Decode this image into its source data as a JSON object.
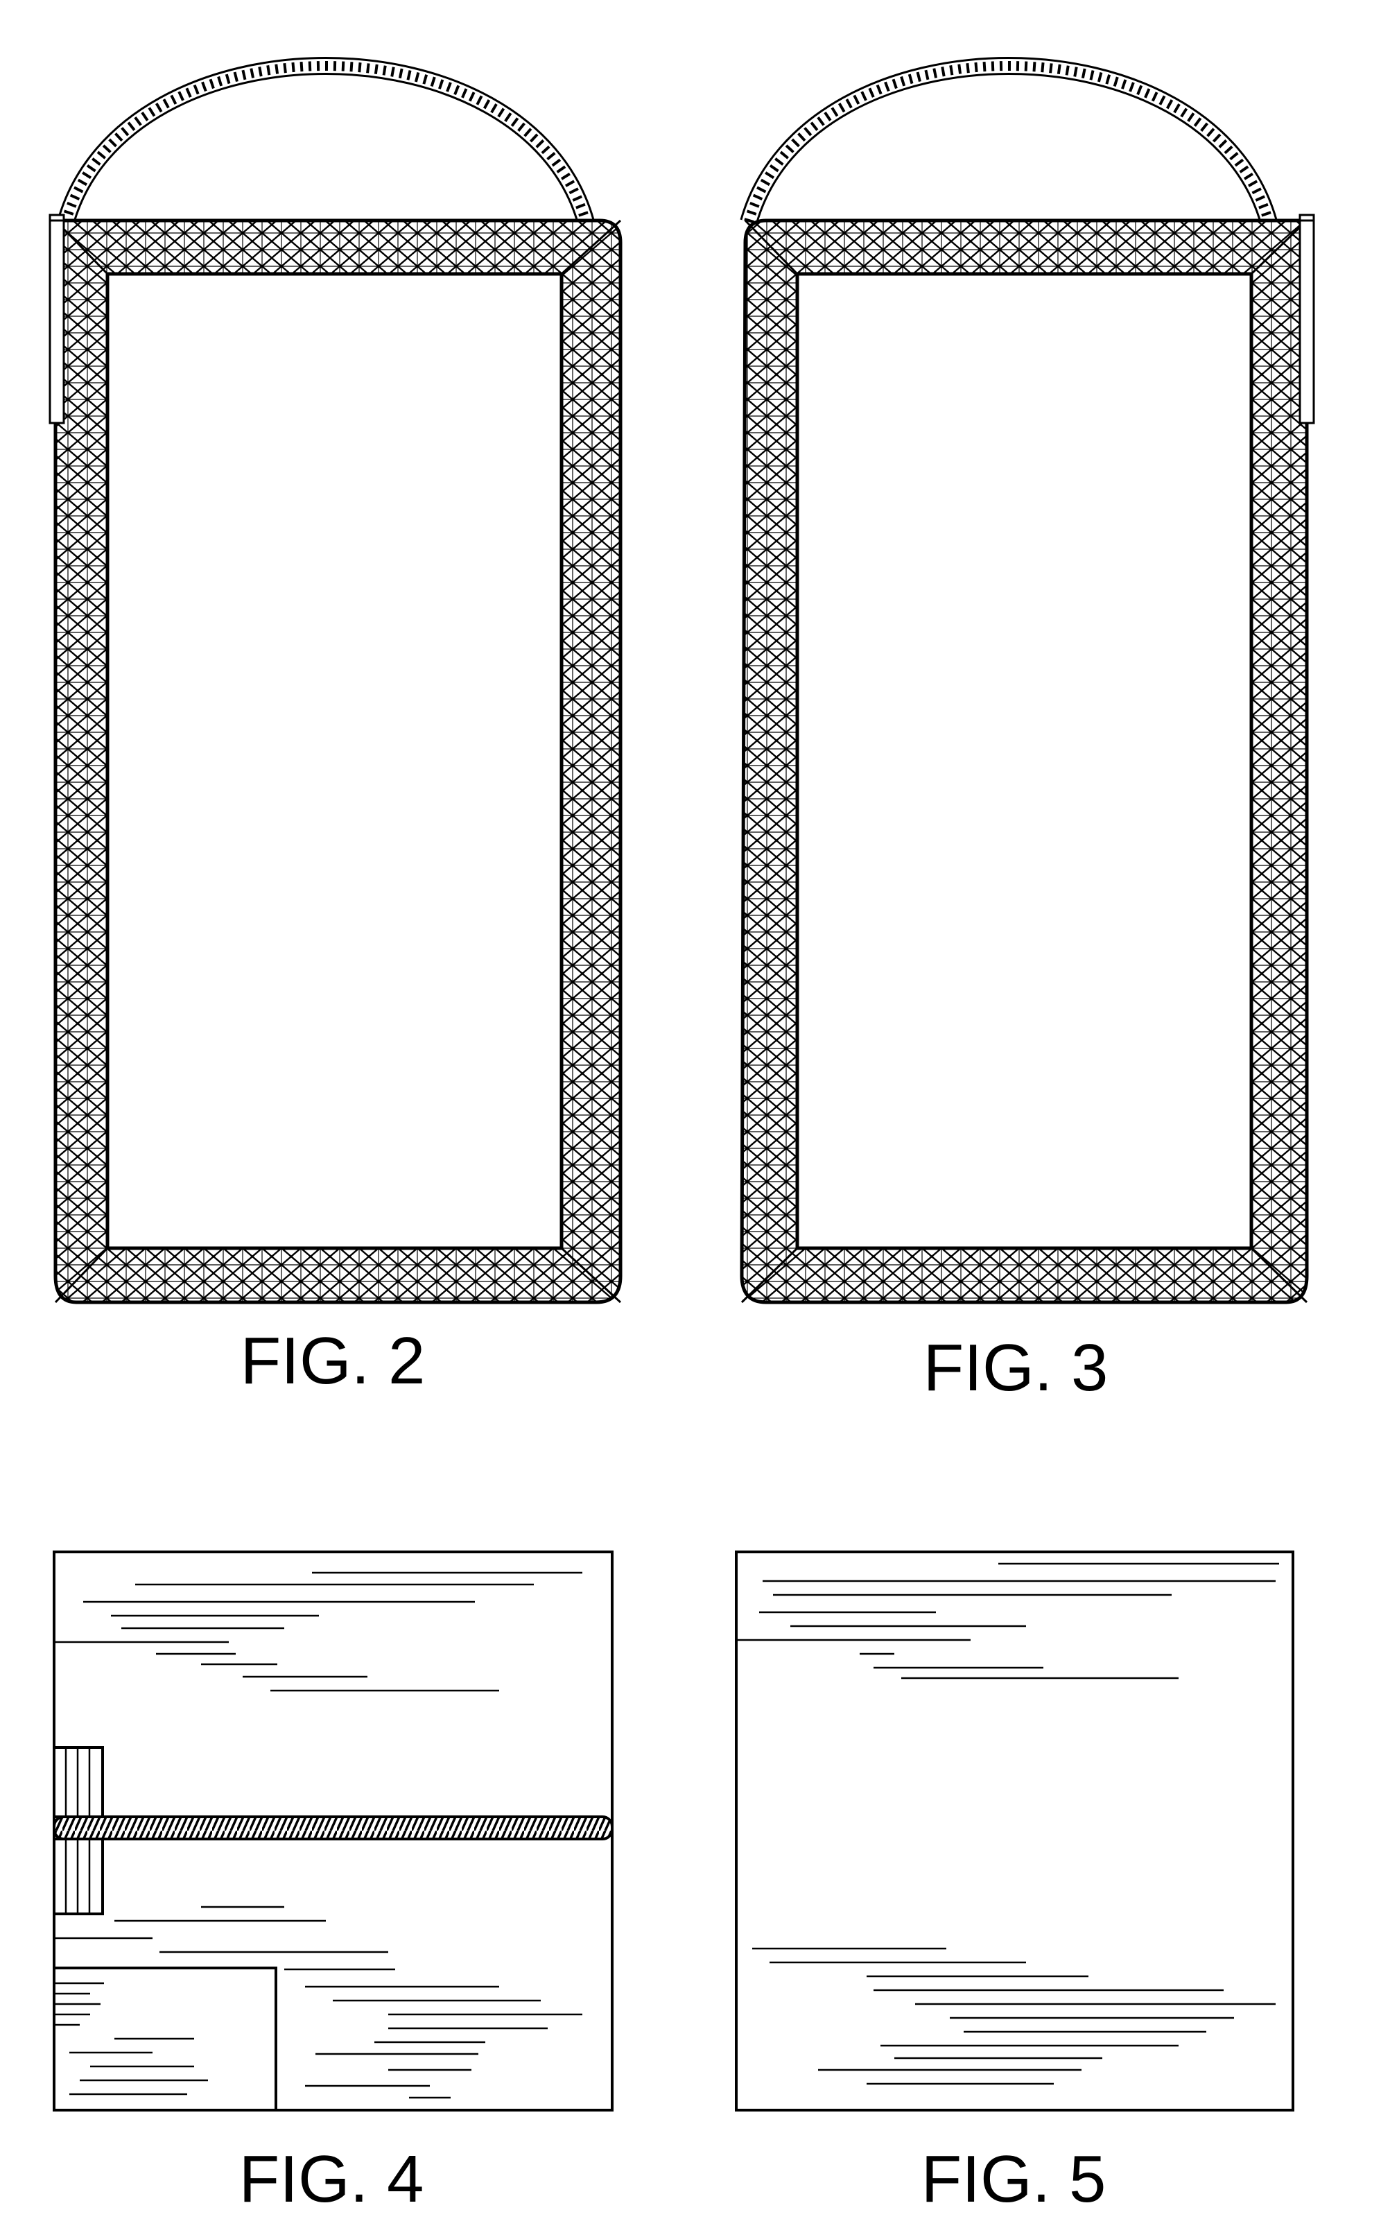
{
  "sheet": {
    "ink": "#000000",
    "paper": "#ffffff"
  },
  "figures": [
    {
      "id": "fig2",
      "label": "FIG. 2",
      "view": "hanging frame with rope handle, tab on left"
    },
    {
      "id": "fig3",
      "label": "FIG. 3",
      "view": "hanging frame with rope handle, tab on right"
    },
    {
      "id": "fig4",
      "label": "FIG. 4",
      "view": "square panel with rope band and tabs"
    },
    {
      "id": "fig5",
      "label": "FIG. 5",
      "view": "plain square panel"
    }
  ]
}
